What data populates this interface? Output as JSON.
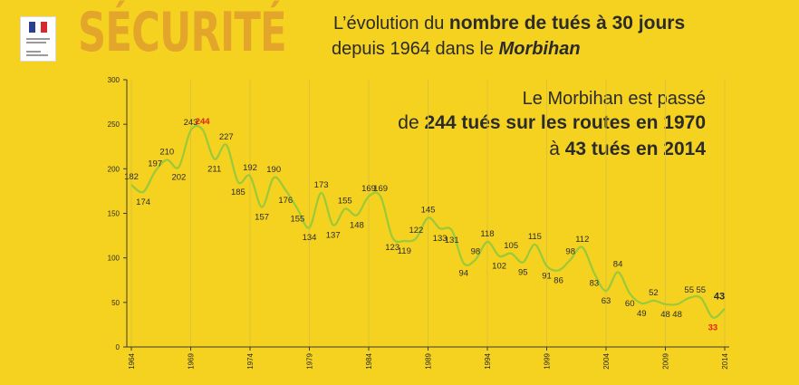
{
  "header": {
    "securite": "SÉCURITÉ",
    "title_line1_pre": "L’évolution du ",
    "title_line1_bold": "nombre de tués à 30 jours",
    "title_line2_pre": "depuis 1964 dans le ",
    "title_line2_italic": "Morbihan"
  },
  "message": {
    "line1": "Le Morbihan est passé",
    "line2_pre": "de ",
    "line2_bold": "244 tués sur les routes en 1970",
    "line3_pre": "à ",
    "line3_bold": "43 tués en 2014"
  },
  "colors": {
    "background": "#f4d21f",
    "line": "#9ac93a",
    "highlight": "#e2231a",
    "text": "#2b2b2b",
    "securite": "#e3a52a",
    "gridline": "#dcc13a"
  },
  "chart_data": {
    "type": "line",
    "title": "",
    "xlabel": "",
    "ylabel": "",
    "x": [
      1964,
      1965,
      1966,
      1967,
      1968,
      1969,
      1970,
      1971,
      1972,
      1973,
      1974,
      1975,
      1976,
      1977,
      1978,
      1979,
      1980,
      1981,
      1982,
      1983,
      1984,
      1985,
      1986,
      1987,
      1988,
      1989,
      1990,
      1991,
      1992,
      1993,
      1994,
      1995,
      1996,
      1997,
      1998,
      1999,
      2000,
      2001,
      2002,
      2003,
      2004,
      2005,
      2006,
      2007,
      2008,
      2009,
      2010,
      2011,
      2012,
      2013,
      2014
    ],
    "series": [
      {
        "values": [
          182,
          174,
          197,
          210,
          202,
          243,
          244,
          211,
          227,
          185,
          192,
          157,
          190,
          176,
          155,
          134,
          173,
          137,
          155,
          148,
          169,
          169,
          123,
          119,
          122,
          145,
          133,
          131,
          94,
          98,
          118,
          102,
          105,
          95,
          115,
          91,
          86,
          98,
          112,
          83,
          63,
          84,
          60,
          49,
          52,
          48,
          48,
          55,
          55,
          33,
          43
        ]
      }
    ],
    "highlight_labels": {
      "1970": "244",
      "2013": "33"
    },
    "last_label": "43",
    "ylim": [
      0,
      300
    ],
    "yticks": [
      0,
      50,
      100,
      150,
      200,
      250,
      300
    ],
    "xticks": [
      1964,
      1969,
      1974,
      1979,
      1984,
      1989,
      1994,
      1999,
      2004,
      2009,
      2014
    ],
    "grid": "vertical"
  }
}
